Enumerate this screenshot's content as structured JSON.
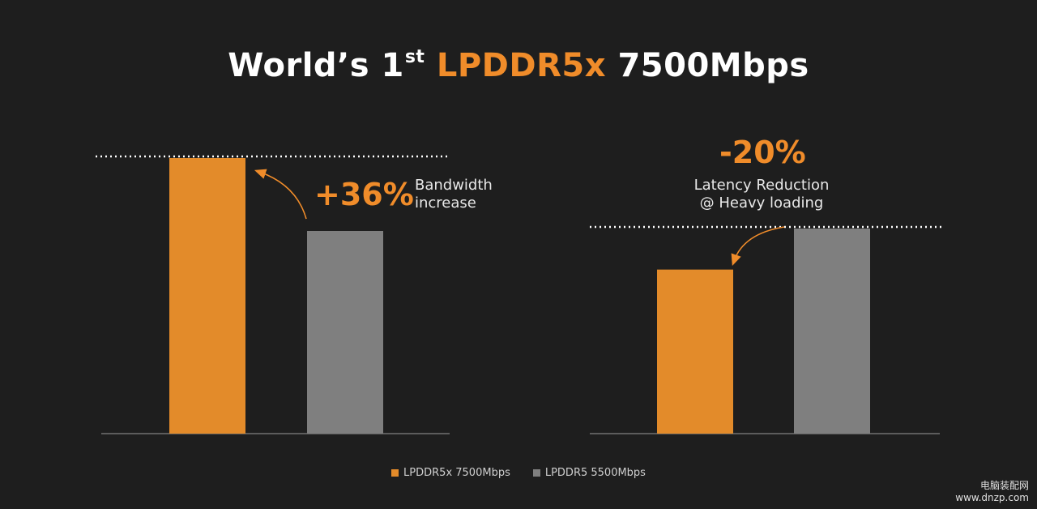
{
  "title": {
    "part1": "World’s 1",
    "sup": "st",
    "accent": "LPDDR5x",
    "part2": "7500Mbps"
  },
  "colors": {
    "lpddr5x": "#e38b2a",
    "lpddr5": "#7f7f7f",
    "accent": "#f08c2a"
  },
  "chart_data": [
    {
      "type": "bar",
      "title": "",
      "categories": [
        "LPDDR5x 7500Mbps",
        "LPDDR5 5500Mbps"
      ],
      "values": [
        136,
        100
      ],
      "ylim": [
        0,
        136
      ],
      "grid": false,
      "annotation": {
        "value": "+36%",
        "label_line1": "Bandwidth",
        "label_line2": "increase"
      }
    },
    {
      "type": "bar",
      "title": "",
      "categories": [
        "LPDDR5x 7500Mbps",
        "LPDDR5 5500Mbps"
      ],
      "values": [
        80,
        100
      ],
      "ylim": [
        0,
        100
      ],
      "grid": false,
      "annotation": {
        "value": "-20%",
        "label_line1": "Latency Reduction",
        "label_line2": "@ Heavy loading"
      }
    }
  ],
  "legend": [
    {
      "label": "LPDDR5x 7500Mbps",
      "color": "#e38b2a"
    },
    {
      "label": "LPDDR5 5500Mbps",
      "color": "#7f7f7f"
    }
  ],
  "watermark": {
    "line1": "电脑装配网",
    "line2": "www.dnzp.com"
  }
}
